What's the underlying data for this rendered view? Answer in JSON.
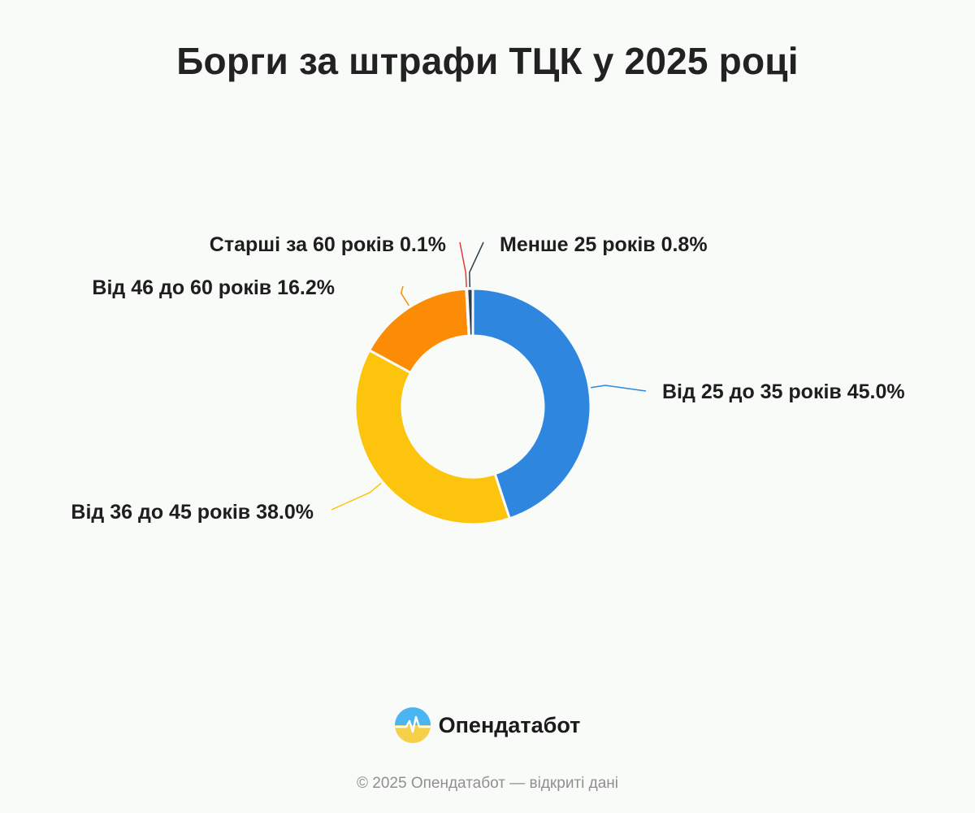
{
  "chart_data": {
    "type": "pie",
    "title": "Борги за штрафи ТЦК у 2025 році",
    "slices": [
      {
        "label": "Від 25 до 35 років",
        "value": 45.0,
        "display": "45.0%",
        "color": "#2e86de"
      },
      {
        "label": "Від 36 до 45 років",
        "value": 38.0,
        "display": "38.0%",
        "color": "#fcc40c"
      },
      {
        "label": "Від 46 до 60 років",
        "value": 16.2,
        "display": "16.2%",
        "color": "#fc8c06"
      },
      {
        "label": "Старші за 60 років",
        "value": 0.1,
        "display": "0.1%",
        "color": "#e03a3a"
      },
      {
        "label": "Менше 25 років",
        "value": 0.8,
        "display": "0.8%",
        "color": "#2c3e50"
      }
    ]
  },
  "brand": {
    "name": "Опендатабот",
    "icon": "opendatabot-logo-icon"
  },
  "footer": {
    "text": "© 2025 Опендатабот — відкриті дані"
  }
}
